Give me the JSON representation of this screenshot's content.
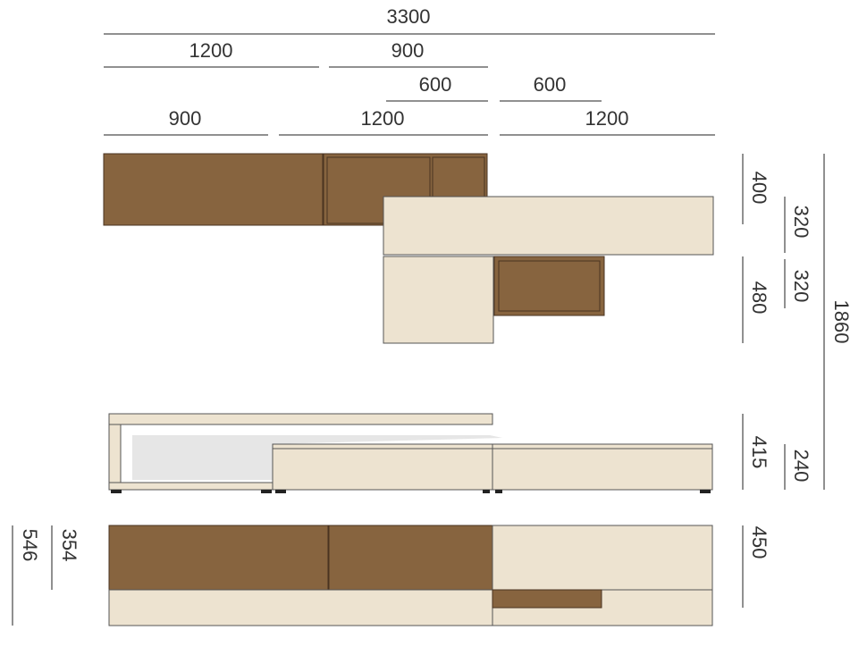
{
  "top_dimensions": [
    "3300",
    "1200",
    "900",
    "600",
    "600",
    "900",
    "1200",
    "1200"
  ],
  "right_dimensions": [
    "400",
    "320",
    "320",
    "480",
    "1860",
    "415",
    "240",
    "450"
  ],
  "left_dimensions": [
    "354",
    "546"
  ]
}
